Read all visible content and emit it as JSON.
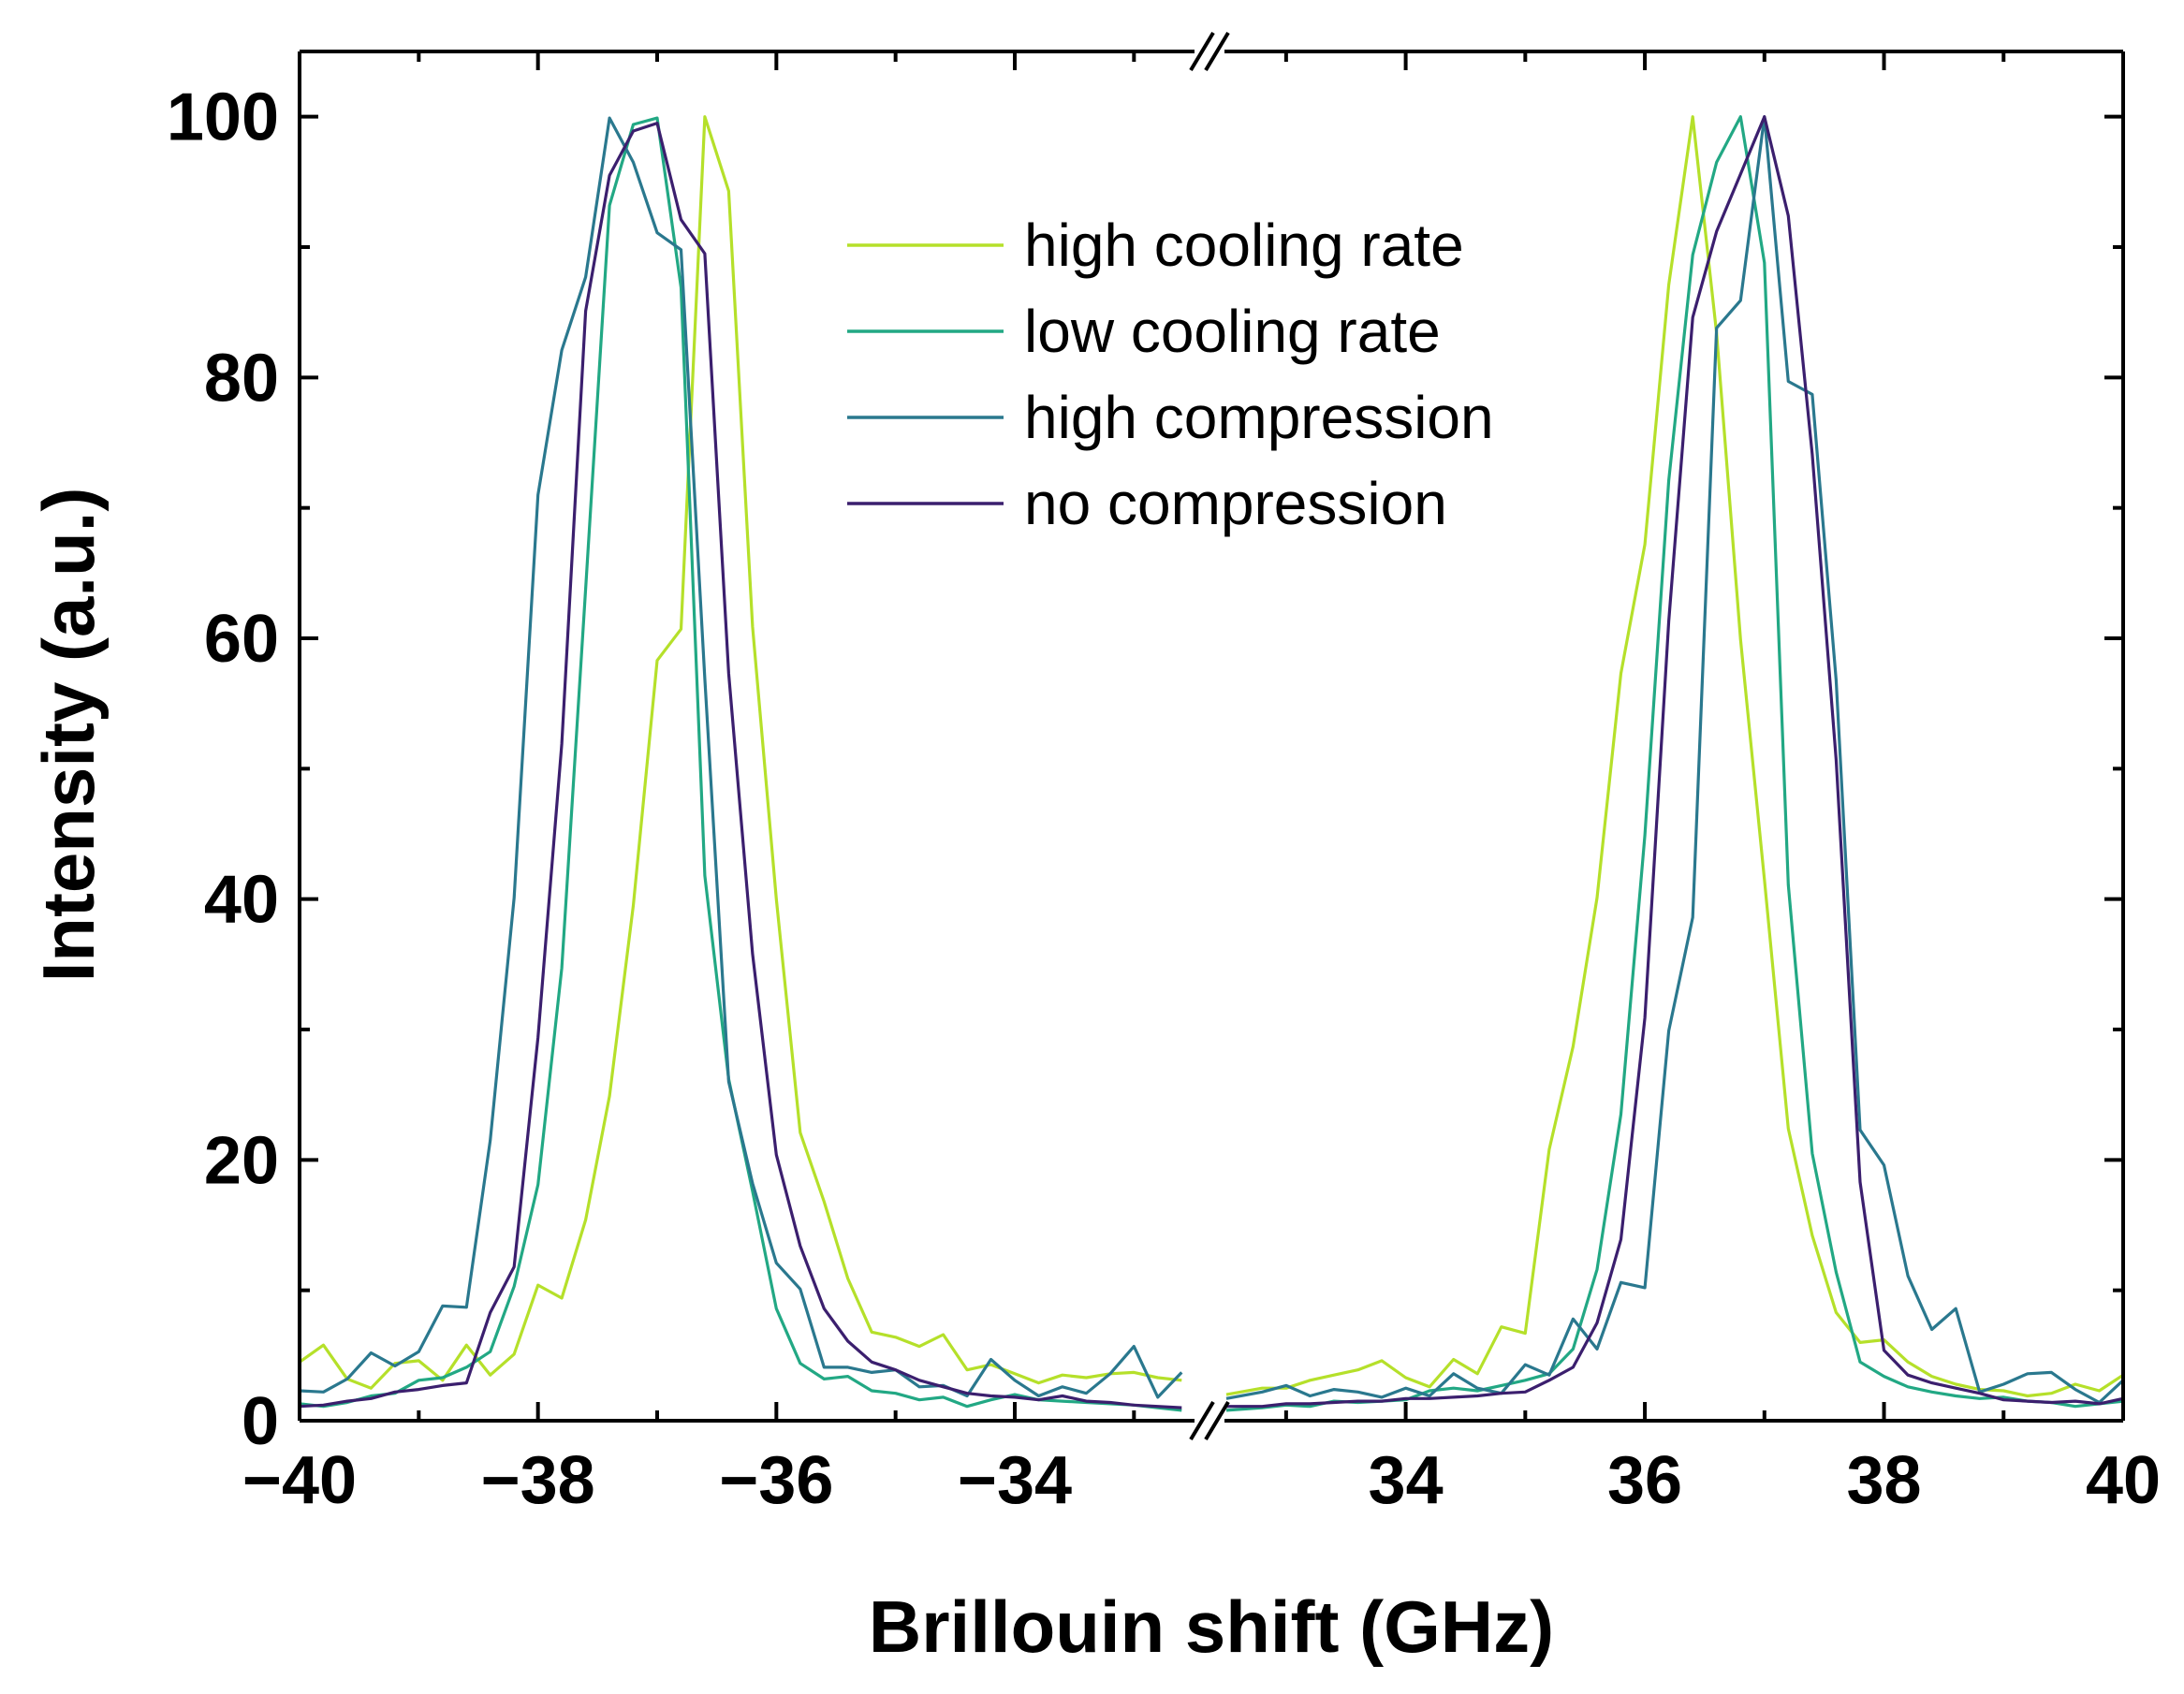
{
  "chart_data": {
    "type": "line",
    "title": "",
    "xlabel": "Brillouin shift (GHz)",
    "ylabel": "Intensity (a.u.)",
    "ylim": [
      0,
      105
    ],
    "x_segments": [
      {
        "range": [
          -40,
          -32.5
        ],
        "ticks": [
          -40,
          -38,
          -36,
          -34
        ],
        "tick_labels": [
          "−40",
          "−38",
          "−36",
          "−34"
        ]
      },
      {
        "range": [
          32.5,
          40
        ],
        "ticks": [
          34,
          36,
          38,
          40
        ],
        "tick_labels": [
          "34",
          "36",
          "38",
          "40"
        ]
      }
    ],
    "y_ticks": [
      0,
      20,
      40,
      60,
      80,
      100
    ],
    "y_tick_labels": [
      "0",
      "20",
      "40",
      "60",
      "80",
      "100"
    ],
    "legend_position": "top-center",
    "series": [
      {
        "name": "high cooling rate",
        "color": "#b5e02a",
        "segments": [
          {
            "x": [
              -40,
              -39.8,
              -39.6,
              -39.4,
              -39.2,
              -39.0,
              -38.8,
              -38.6,
              -38.4,
              -38.2,
              -38.0,
              -37.8,
              -37.6,
              -37.4,
              -37.2,
              -37.0,
              -36.8,
              -36.6,
              -36.4,
              -36.2,
              -36.0,
              -35.8,
              -35.6,
              -35.4,
              -35.2,
              -35.0,
              -34.8,
              -34.6,
              -34.4,
              -34.2,
              -34.0,
              -33.8,
              -33.6,
              -33.4,
              -33.2,
              -33.0,
              -32.8,
              -32.6
            ],
            "y": [
              4.5,
              5.8,
              3.2,
              2.5,
              4.4,
              4.6,
              3.1,
              5.8,
              3.5,
              5.1,
              10.4,
              9.4,
              15.4,
              24.9,
              39.5,
              58.3,
              60.7,
              100,
              94.3,
              60.9,
              40,
              22.1,
              16.8,
              10.9,
              6.8,
              6.4,
              5.7,
              6.6,
              3.9,
              4.3,
              3.6,
              2.9,
              3.5,
              3.3,
              3.6,
              3.7,
              3.3,
              3.1
            ]
          },
          {
            "x": [
              32.5,
              32.8,
              33.0,
              33.2,
              33.4,
              33.6,
              33.8,
              34.0,
              34.2,
              34.4,
              34.6,
              34.8,
              35.0,
              35.2,
              35.4,
              35.6,
              35.8,
              36.0,
              36.2,
              36.4,
              36.6,
              36.8,
              37.0,
              37.2,
              37.4,
              37.6,
              37.8,
              38.0,
              38.2,
              38.4,
              38.6,
              38.8,
              39.0,
              39.2,
              39.4,
              39.6,
              39.8,
              40.0
            ],
            "y": [
              2.0,
              2.5,
              2.5,
              3.1,
              3.5,
              3.9,
              4.6,
              3.3,
              2.6,
              4.7,
              3.6,
              7.2,
              6.7,
              20.8,
              28.7,
              40.1,
              57.3,
              67.2,
              87.1,
              100,
              83.4,
              59.9,
              41.5,
              22.4,
              14.2,
              8.3,
              6.0,
              6.2,
              4.5,
              3.4,
              2.8,
              2.4,
              2.3,
              1.9,
              2.1,
              2.8,
              2.3,
              3.5
            ]
          }
        ]
      },
      {
        "name": "low cooling rate",
        "color": "#22a884",
        "segments": [
          {
            "x": [
              -40,
              -39.8,
              -39.6,
              -39.4,
              -39.2,
              -39.0,
              -38.8,
              -38.6,
              -38.4,
              -38.2,
              -38.0,
              -37.8,
              -37.6,
              -37.4,
              -37.2,
              -37.0,
              -36.8,
              -36.6,
              -36.4,
              -36.2,
              -36.0,
              -35.8,
              -35.6,
              -35.4,
              -35.2,
              -35.0,
              -34.8,
              -34.6,
              -34.4,
              -34.2,
              -34.0,
              -33.8,
              -33.6,
              -33.4,
              -33.2,
              -33.0,
              -32.8,
              -32.6
            ],
            "y": [
              1.3,
              1.1,
              1.4,
              1.9,
              2.1,
              3.1,
              3.3,
              4.1,
              5.3,
              10.3,
              18.1,
              34.7,
              63.8,
              93.2,
              99.4,
              99.9,
              86.9,
              41.8,
              26.2,
              17.6,
              8.6,
              4.4,
              3.2,
              3.4,
              2.3,
              2.1,
              1.6,
              1.8,
              1.1,
              1.6,
              2.0,
              1.6,
              1.5,
              1.4,
              1.3,
              1.2,
              1.0,
              0.8
            ]
          },
          {
            "x": [
              32.5,
              32.8,
              33.0,
              33.2,
              33.4,
              33.6,
              33.8,
              34.0,
              34.2,
              34.4,
              34.6,
              34.8,
              35.0,
              35.2,
              35.4,
              35.6,
              35.8,
              36.0,
              36.2,
              36.4,
              36.6,
              36.8,
              37.0,
              37.2,
              37.4,
              37.6,
              37.8,
              38.0,
              38.2,
              38.4,
              38.6,
              38.8,
              39.0,
              39.2,
              39.4,
              39.6,
              39.8,
              40.0
            ],
            "y": [
              0.8,
              1.0,
              1.2,
              1.1,
              1.5,
              1.4,
              1.5,
              1.6,
              2.3,
              2.5,
              2.3,
              2.7,
              3.1,
              3.6,
              5.5,
              11.6,
              23.5,
              44.9,
              72.1,
              89.4,
              96.5,
              100,
              88.8,
              41.1,
              20.5,
              11.4,
              4.5,
              3.4,
              2.6,
              2.2,
              1.9,
              1.7,
              1.8,
              1.5,
              1.4,
              1.1,
              1.3,
              1.5
            ]
          }
        ]
      },
      {
        "name": "high compression",
        "color": "#2a788e",
        "segments": [
          {
            "x": [
              -40,
              -39.8,
              -39.6,
              -39.4,
              -39.2,
              -39.0,
              -38.8,
              -38.6,
              -38.4,
              -38.2,
              -38.0,
              -37.8,
              -37.6,
              -37.4,
              -37.2,
              -37.0,
              -36.8,
              -36.6,
              -36.4,
              -36.2,
              -36.0,
              -35.8,
              -35.6,
              -35.4,
              -35.2,
              -35.0,
              -34.8,
              -34.6,
              -34.4,
              -34.2,
              -34.0,
              -33.8,
              -33.6,
              -33.4,
              -33.2,
              -33.0,
              -32.8,
              -32.6
            ],
            "y": [
              2.3,
              2.2,
              3.2,
              5.2,
              4.2,
              5.3,
              8.8,
              8.7,
              21.5,
              40.1,
              71.0,
              82.1,
              87.7,
              99.9,
              96.5,
              91.1,
              89.8,
              56.9,
              26.0,
              18.2,
              12.1,
              10.1,
              4.1,
              4.1,
              3.7,
              3.9,
              2.6,
              2.7,
              1.9,
              4.7,
              3.1,
              1.9,
              2.6,
              2.1,
              3.6,
              5.7,
              1.8,
              3.7
            ]
          },
          {
            "x": [
              32.5,
              32.8,
              33.0,
              33.2,
              33.4,
              33.6,
              33.8,
              34.0,
              34.2,
              34.4,
              34.6,
              34.8,
              35.0,
              35.2,
              35.4,
              35.6,
              35.8,
              36.0,
              36.2,
              36.4,
              36.6,
              36.8,
              37.0,
              37.2,
              37.4,
              37.6,
              37.8,
              38.0,
              38.2,
              38.4,
              38.6,
              38.8,
              39.0,
              39.2,
              39.4,
              39.6,
              39.8,
              40.0
            ],
            "y": [
              1.7,
              2.2,
              2.7,
              1.9,
              2.4,
              2.2,
              1.8,
              2.5,
              1.9,
              3.6,
              2.5,
              2.1,
              4.3,
              3.5,
              7.8,
              5.5,
              10.6,
              10.2,
              29.9,
              38.6,
              83.8,
              85.9,
              100,
              79.7,
              78.7,
              56.8,
              22.3,
              19.6,
              11.1,
              7.0,
              8.6,
              2.2,
              2.8,
              3.6,
              3.7,
              2.4,
              1.4,
              3.1
            ]
          }
        ]
      },
      {
        "name": "no compression",
        "color": "#3b1f6e",
        "segments": [
          {
            "x": [
              -40,
              -39.8,
              -39.6,
              -39.4,
              -39.2,
              -39.0,
              -38.8,
              -38.6,
              -38.4,
              -38.2,
              -38.0,
              -37.8,
              -37.6,
              -37.4,
              -37.2,
              -37.0,
              -36.8,
              -36.6,
              -36.4,
              -36.2,
              -36.0,
              -35.8,
              -35.6,
              -35.4,
              -35.2,
              -35.0,
              -34.8,
              -34.6,
              -34.4,
              -34.2,
              -34.0,
              -33.8,
              -33.6,
              -33.4,
              -33.2,
              -33.0,
              -32.8,
              -32.6
            ],
            "y": [
              1.1,
              1.2,
              1.5,
              1.7,
              2.2,
              2.4,
              2.7,
              2.9,
              8.3,
              11.8,
              29.4,
              51.9,
              85.1,
              95.5,
              98.9,
              99.5,
              92.1,
              89.5,
              57.3,
              35.8,
              20.4,
              13.4,
              8.6,
              6.1,
              4.5,
              3.9,
              3.1,
              2.6,
              2.1,
              1.9,
              1.8,
              1.6,
              1.9,
              1.5,
              1.4,
              1.2,
              1.1,
              1.0
            ]
          },
          {
            "x": [
              32.5,
              32.8,
              33.0,
              33.2,
              33.4,
              33.6,
              33.8,
              34.0,
              34.2,
              34.4,
              34.6,
              34.8,
              35.0,
              35.2,
              35.4,
              35.6,
              35.8,
              36.0,
              36.2,
              36.4,
              36.6,
              36.8,
              37.0,
              37.2,
              37.4,
              37.6,
              37.8,
              38.0,
              38.2,
              38.4,
              38.6,
              38.8,
              39.0,
              39.2,
              39.4,
              39.6,
              39.8,
              40.0
            ],
            "y": [
              1.1,
              1.1,
              1.3,
              1.3,
              1.4,
              1.5,
              1.5,
              1.7,
              1.7,
              1.8,
              1.9,
              2.1,
              2.2,
              3.1,
              4.1,
              7.5,
              13.9,
              30.9,
              61.3,
              84.6,
              91.2,
              95.6,
              100,
              92.4,
              74.1,
              50.7,
              18.3,
              5.4,
              3.5,
              2.9,
              2.5,
              2.1,
              1.6,
              1.5,
              1.4,
              1.5,
              1.3,
              1.7
            ]
          }
        ]
      }
    ]
  }
}
